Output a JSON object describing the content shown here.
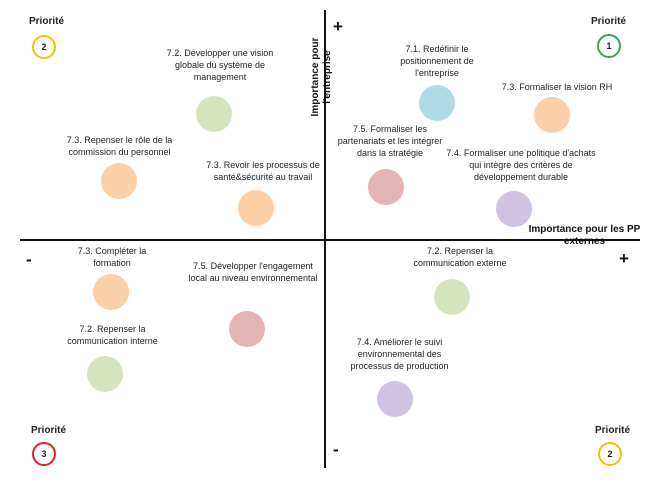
{
  "axes": {
    "plus_top": "+",
    "minus_bottom": "-",
    "minus_left": "-",
    "plus_right": "+",
    "y_label": "Importance pour l'entreprise",
    "x_label": "Importance pour les PP externes"
  },
  "priorities": [
    {
      "label": "Priorité",
      "number": "2",
      "color": "#F2C100"
    },
    {
      "label": "Priorité",
      "number": "1",
      "color": "#2FA84F"
    },
    {
      "label": "Priorité",
      "number": "3",
      "color": "#E02020"
    },
    {
      "label": "Priorité",
      "number": "2",
      "color": "#F2C100"
    }
  ],
  "items": [
    {
      "text": "7.2. Développer une vision globale du système de management",
      "color": "#D6E4BE"
    },
    {
      "text": "7.1. Redéfinir le positionnement de l'entreprise",
      "color": "#AED9E6"
    },
    {
      "text": "7.3. Formaliser la vision RH",
      "color": "#FBD0A8"
    },
    {
      "text": "7.3. Repenser le rôle de la commission du personnel",
      "color": "#FBD0A8"
    },
    {
      "text": "7.3. Revoir les processus de santé&sécurité au travail",
      "color": "#FBD0A8"
    },
    {
      "text": "7.5. Formaliser les partenariats et les intégrer dans la stratégie",
      "color": "#E2B4B6"
    },
    {
      "text": "7.4. Formaliser une politique d'achats qui intègre des critères de développement durable",
      "color": "#CFC3E1"
    },
    {
      "text": "7.3. Compléter la formation",
      "color": "#FBD0A8"
    },
    {
      "text": "7.5. Développer l'engagement local au niveau environnemental",
      "color": "#E2B4B6"
    },
    {
      "text": "7.2. Repenser la communication externe",
      "color": "#D6E4BE"
    },
    {
      "text": "7.2. Repenser la communication interne",
      "color": "#D6E4BE"
    },
    {
      "text": "7.4. Améliorer le suivi environnemental des processus de production",
      "color": "#CFC3E1"
    }
  ]
}
